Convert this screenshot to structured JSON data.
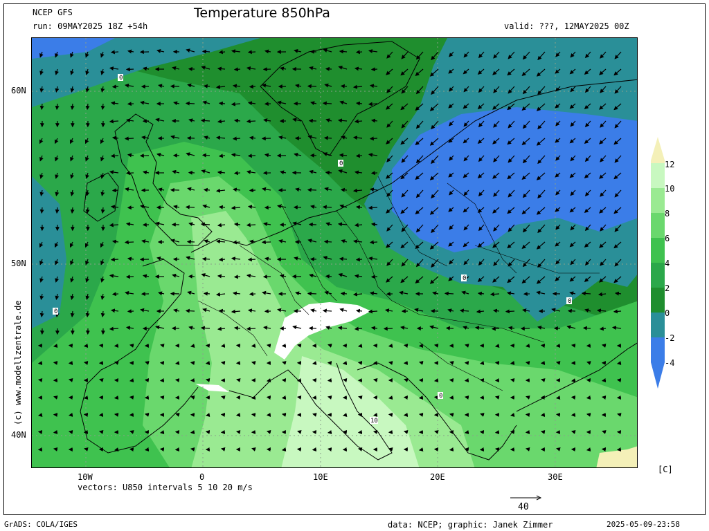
{
  "header": {
    "model": "NCEP GFS",
    "run": "run: 09MAY2025 18Z +54h",
    "title": "Temperature 850hPa",
    "valid": "valid: ???, 12MAY2025 00Z"
  },
  "map": {
    "latitude_labels": [
      "60N",
      "50N",
      "40N"
    ],
    "longitude_labels": [
      "10W",
      "0",
      "10E",
      "20E",
      "30E"
    ],
    "contour_labels": [
      "0",
      "0",
      "0",
      "0",
      "0",
      "0",
      "10"
    ],
    "colors": {
      "minus4": "#3b7de8",
      "minus2": "#2a8f98",
      "zero": "#1f8e2e",
      "two": "#2ba84a",
      "four": "#3fc24f",
      "six": "#6ad86d",
      "eight": "#9aea92",
      "ten": "#c8f8c0",
      "twelve": "#f4f0b8"
    }
  },
  "legend": {
    "labels": [
      "12",
      "10",
      "8",
      "6",
      "4",
      "2",
      "0",
      "-2",
      "-4"
    ],
    "unit": "[C]"
  },
  "vectors_note": "vectors: U850 intervals 5 10 20 m/s",
  "reference_vector": "40",
  "watermark": "(c) www.modellzentrale.de",
  "footer": {
    "left": "GrADS: COLA/IGES",
    "credit": "data: NCEP; graphic: Janek Zimmer",
    "timestamp": "2025-05-09-23:58"
  }
}
